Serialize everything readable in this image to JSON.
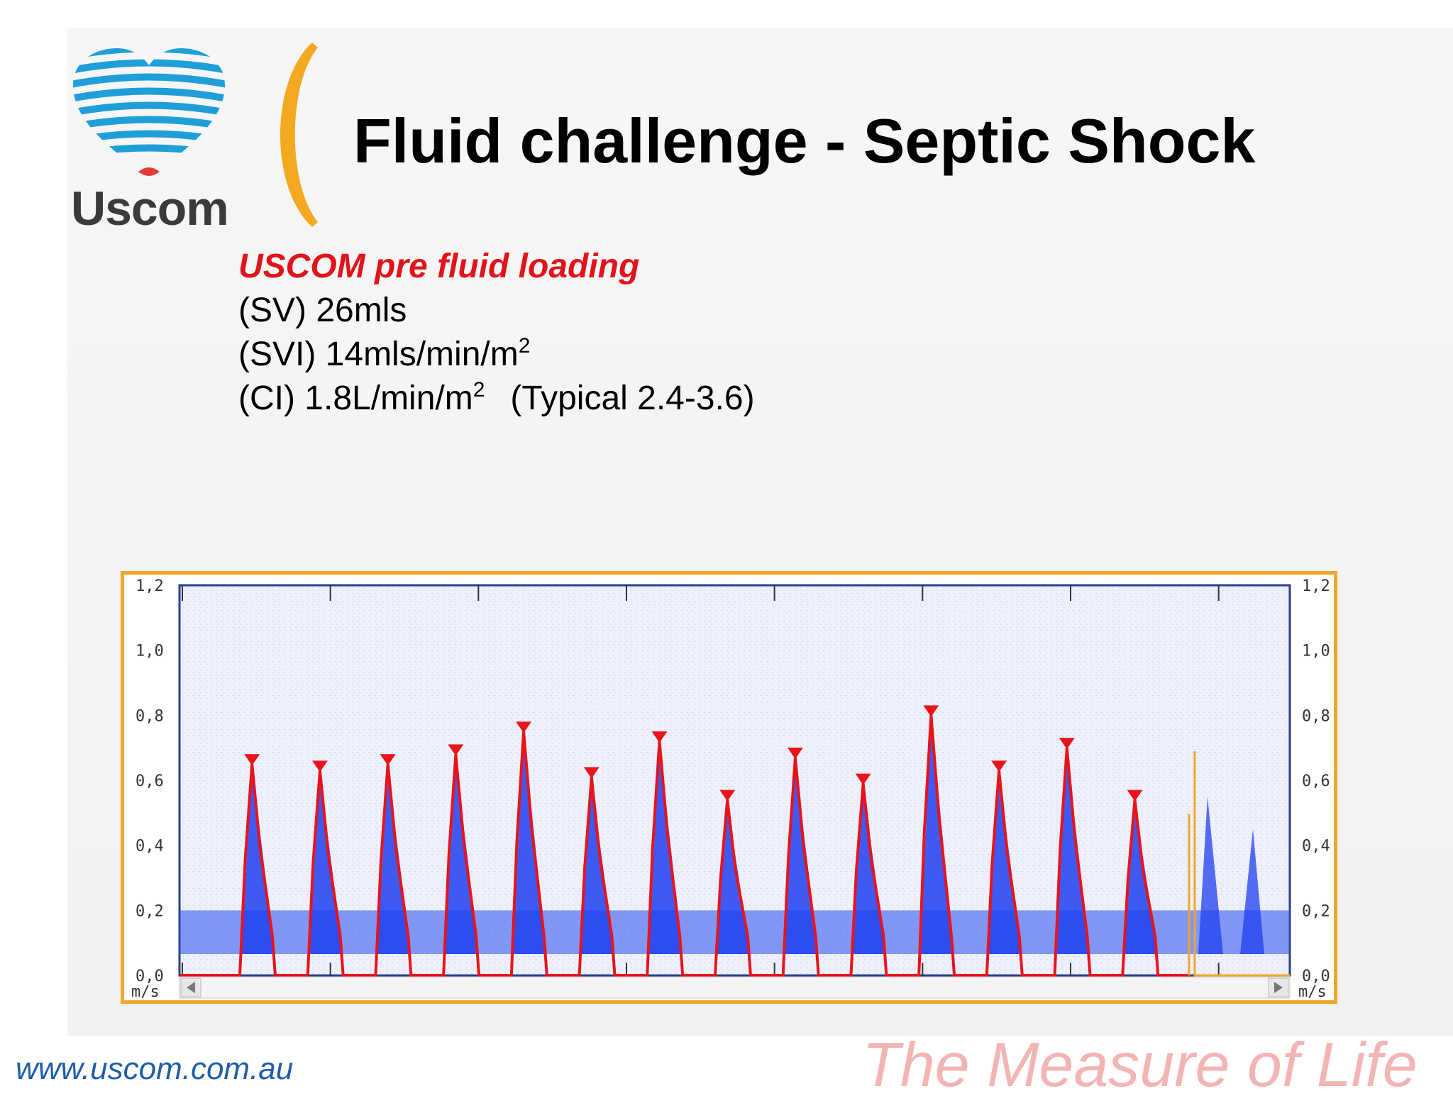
{
  "logo": {
    "text": "Uscom",
    "icon": "heart-signal-icon"
  },
  "title": "Fluid challenge - Septic Shock",
  "stats": {
    "heading": "USCOM pre fluid loading",
    "sv": "(SV) 26mls",
    "svi_prefix": "(SVI) 14mls/min/m",
    "ci_prefix": "(CI) 1.8L/min/m",
    "superscript": "2",
    "typical": "(Typical 2.4-3.6)"
  },
  "chart_data": {
    "type": "line",
    "title": "",
    "ylabel": "m/s",
    "unit": "m/s",
    "ylim": [
      0.0,
      1.2
    ],
    "yticks": [
      "0,0",
      "0,2",
      "0,4",
      "0,6",
      "0,8",
      "1,0",
      "1,2"
    ],
    "series": [
      {
        "color": "#e8141a",
        "peaks_ms": [
          0.65,
          0.63,
          0.65,
          0.68,
          0.75,
          0.61,
          0.72,
          0.54,
          0.67,
          0.59,
          0.8,
          0.63,
          0.7,
          0.54
        ]
      }
    ],
    "trailing_marker": {
      "color": "#f0a62a",
      "value": 0.69
    },
    "background": "#eef0fb",
    "doppler_color": "#1f3ff0"
  },
  "footer": {
    "url": "www.uscom.com.au",
    "tagline": "The Measure of Life"
  },
  "colors": {
    "accent": "#f0a62a",
    "brand_red": "#e0141a",
    "brand_blue": "#1f5ea8"
  }
}
